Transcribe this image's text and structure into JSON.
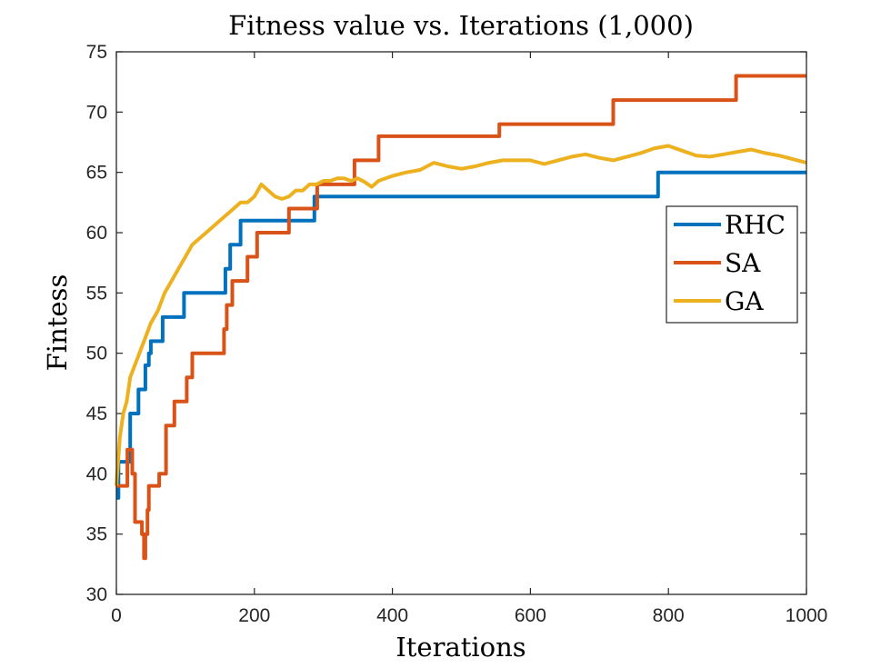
{
  "chart_data": {
    "type": "line",
    "title": "Fitness value vs. Iterations (1,000)",
    "xlabel": "Iterations",
    "ylabel": "Fintess",
    "xlim": [
      0,
      1000
    ],
    "ylim": [
      30,
      75
    ],
    "xticks": [
      0,
      200,
      400,
      600,
      800,
      1000
    ],
    "yticks": [
      30,
      35,
      40,
      45,
      50,
      55,
      60,
      65,
      70,
      75
    ],
    "grid": false,
    "legend_position": "right",
    "series": [
      {
        "name": "RHC",
        "color": "#0072BD",
        "step": true,
        "x": [
          0,
          3,
          8,
          20,
          32,
          42,
          47,
          50,
          67,
          98,
          158,
          165,
          180,
          287,
          295,
          785,
          1000
        ],
        "y": [
          38,
          41,
          41,
          45,
          47,
          49,
          50,
          51,
          53,
          55,
          57,
          59,
          61,
          63,
          63,
          65,
          65
        ]
      },
      {
        "name": "SA",
        "color": "#D95319",
        "step": true,
        "x": [
          0,
          16,
          20,
          23,
          27,
          37,
          40,
          42,
          45,
          47,
          62,
          68,
          72,
          84,
          102,
          110,
          156,
          160,
          168,
          190,
          204,
          250,
          255,
          291,
          345,
          380,
          555,
          720,
          898,
          1000
        ],
        "y": [
          39,
          42,
          42,
          40,
          36,
          35,
          33,
          35,
          37,
          39,
          40,
          40,
          44,
          46,
          48,
          50,
          52,
          54,
          56,
          58,
          60,
          62,
          62,
          64,
          66,
          68,
          69,
          71,
          73,
          73
        ]
      },
      {
        "name": "GA",
        "color": "#EDB120",
        "step": false,
        "x": [
          0,
          5,
          10,
          15,
          20,
          30,
          40,
          50,
          60,
          70,
          80,
          90,
          100,
          110,
          120,
          130,
          140,
          150,
          160,
          170,
          180,
          190,
          200,
          210,
          220,
          230,
          240,
          250,
          260,
          270,
          280,
          290,
          300,
          310,
          320,
          330,
          340,
          350,
          360,
          370,
          380,
          390,
          400,
          420,
          440,
          460,
          480,
          500,
          520,
          540,
          560,
          580,
          600,
          620,
          640,
          660,
          680,
          700,
          720,
          740,
          760,
          780,
          800,
          820,
          840,
          860,
          880,
          900,
          920,
          940,
          960,
          980,
          1000
        ],
        "y": [
          39,
          43,
          45,
          46,
          48,
          49.5,
          51,
          52.5,
          53.5,
          55,
          56,
          57,
          58,
          59,
          59.5,
          60,
          60.5,
          61,
          61.5,
          62,
          62.5,
          62.5,
          63,
          64,
          63.5,
          63,
          62.8,
          63,
          63.5,
          63.5,
          64,
          64,
          64.3,
          64.3,
          64.5,
          64.5,
          64.3,
          64.5,
          64.2,
          63.8,
          64.3,
          64.5,
          64.7,
          65,
          65.2,
          65.8,
          65.5,
          65.3,
          65.5,
          65.8,
          66,
          66,
          66,
          65.7,
          66,
          66.3,
          66.5,
          66.2,
          66,
          66.3,
          66.6,
          67,
          67.2,
          66.8,
          66.4,
          66.3,
          66.5,
          66.7,
          66.9,
          66.6,
          66.4,
          66.1,
          65.8
        ]
      }
    ]
  }
}
